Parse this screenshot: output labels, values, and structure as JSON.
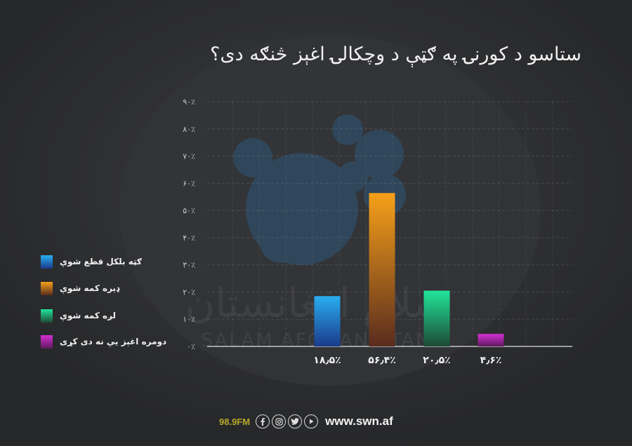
{
  "title": "ستاسو د کورنۍ په ګټې د وچکالۍ اغېز څنګه دی؟",
  "watermark": {
    "arabic": "سلام افغانستان",
    "latin": "SALAM AFGHANISTAN"
  },
  "chart_data": {
    "type": "bar",
    "yaxis_ticks": [
      "۰٪",
      "۱۰٪",
      "۲۰٪",
      "۳۰٪",
      "۴۰٪",
      "۵۰٪",
      "۶۰٪",
      "۷۰٪",
      "۸۰٪",
      "۹۰٪"
    ],
    "ylim": [
      0,
      90
    ],
    "grid": true,
    "legend_position": "left",
    "bars": [
      {
        "label": "ګټه بلکل قطع شوې",
        "value": 18.5,
        "value_label": "۱۸٫۵٪",
        "color_top": "#2aaef0",
        "color_bottom": "#1a3a8a"
      },
      {
        "label": "ډېره کمه شوې",
        "value": 56.4,
        "value_label": "۵۶٫۴٪",
        "color_top": "#f6a019",
        "color_bottom": "#5a2c1e"
      },
      {
        "label": "لږه کمه شوې",
        "value": 20.5,
        "value_label": "۲۰٫۵٪",
        "color_top": "#21e59a",
        "color_bottom": "#1d4a34"
      },
      {
        "label": "دومره اغېز یې نه دی کړی",
        "value": 4.6,
        "value_label": "۴٫۶٪",
        "color_top": "#d42fd4",
        "color_bottom": "#5e1a5e"
      }
    ]
  },
  "footer": {
    "radio": "98.9FM",
    "social_icons": [
      "facebook-icon",
      "instagram-icon",
      "twitter-icon",
      "youtube-icon"
    ],
    "url": "www.swn.af"
  }
}
